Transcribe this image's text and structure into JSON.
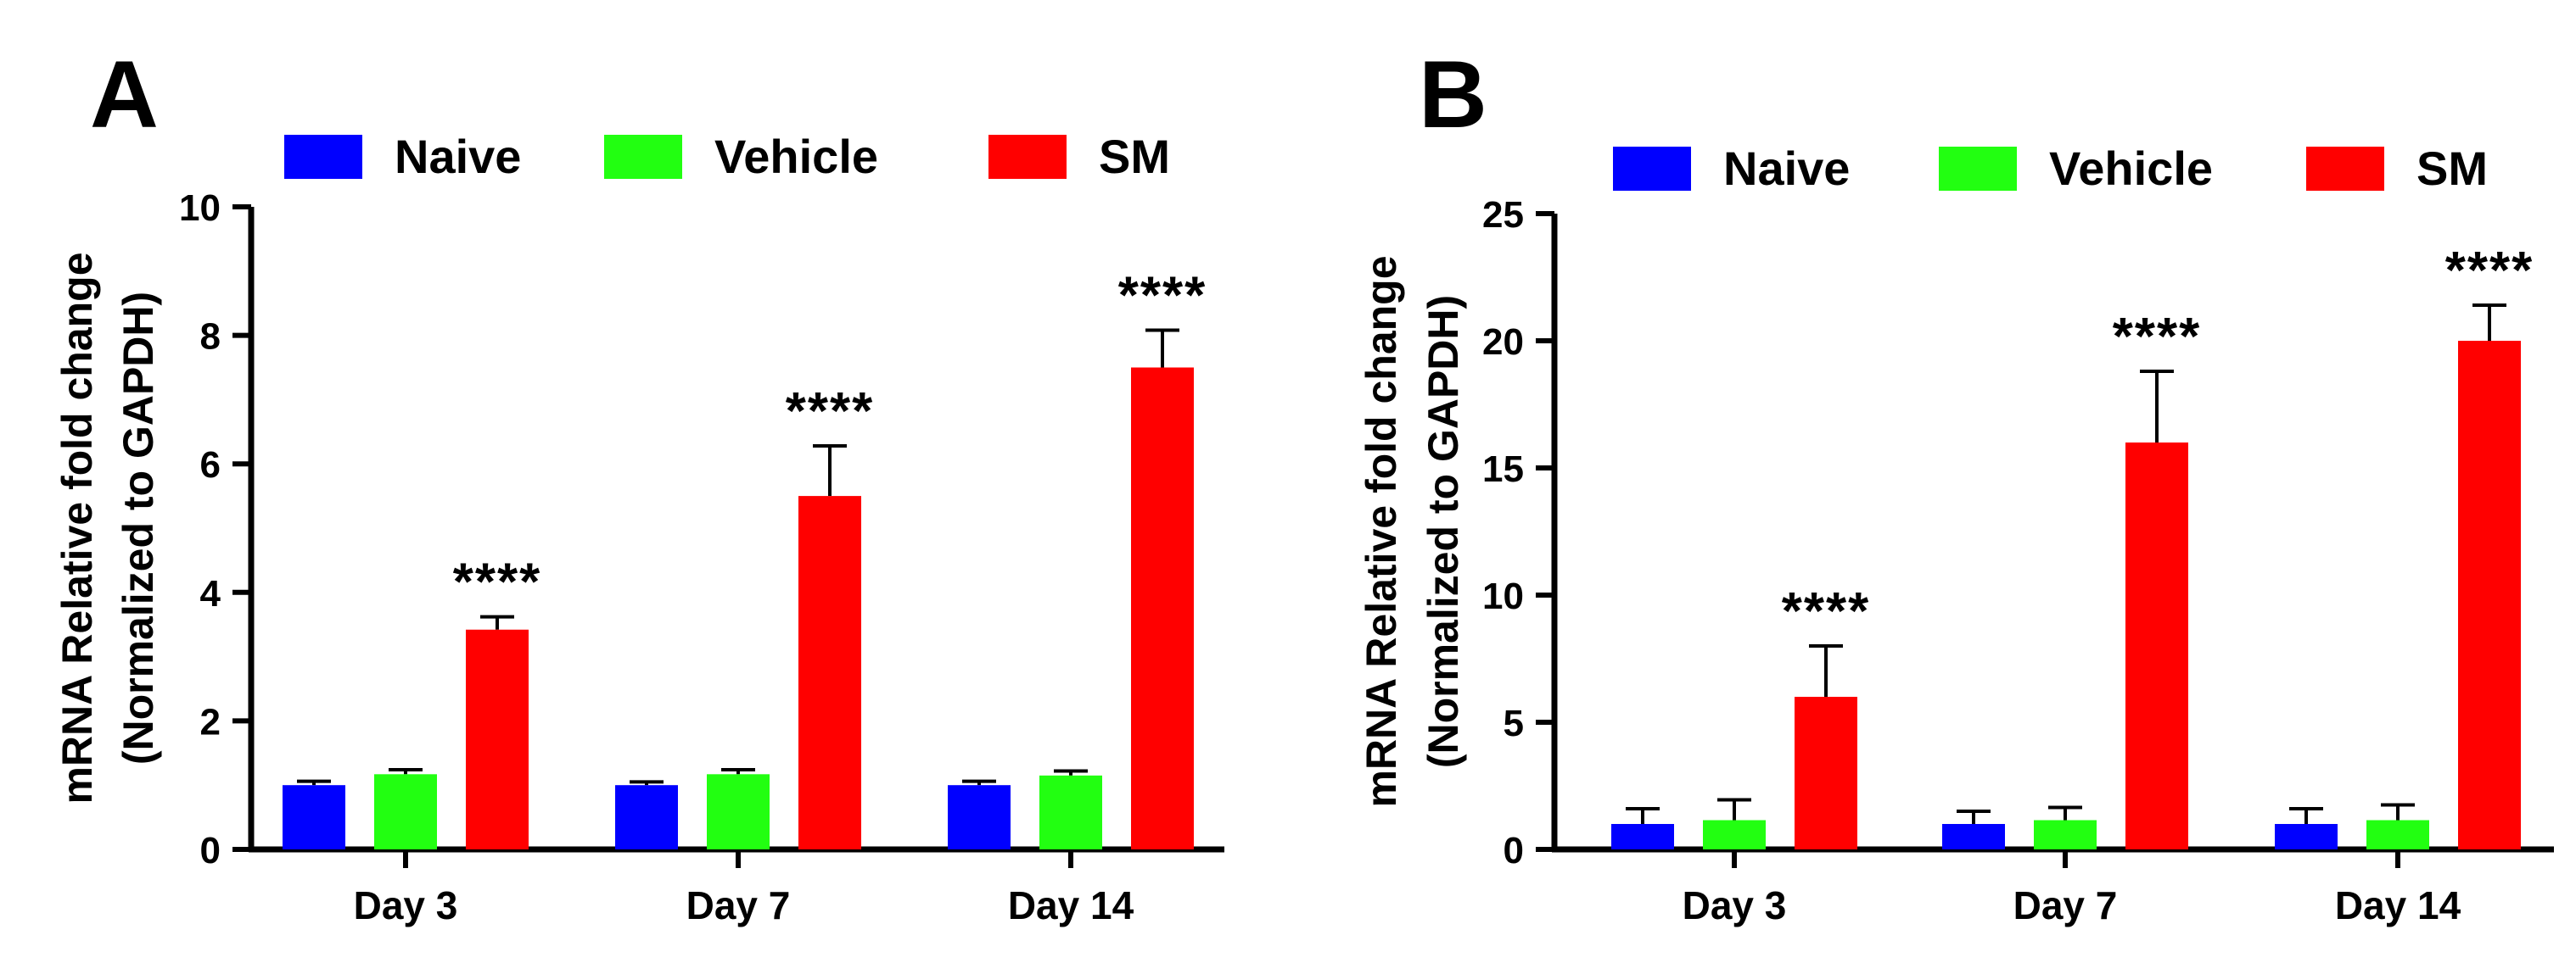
{
  "chart_data": [
    {
      "type": "bar",
      "panel_label": "A",
      "title": "",
      "categories": [
        "Day 3",
        "Day 7",
        "Day 14"
      ],
      "series": [
        {
          "name": "Naive",
          "color": "#0000ff",
          "values": [
            1.0,
            1.0,
            1.0
          ],
          "errors": [
            0.06,
            0.05,
            0.06
          ]
        },
        {
          "name": "Vehicle",
          "color": "#22ff11",
          "values": [
            1.17,
            1.17,
            1.15
          ],
          "errors": [
            0.07,
            0.07,
            0.07
          ]
        },
        {
          "name": "SM",
          "color": "#ff0000",
          "values": [
            3.42,
            5.5,
            7.5
          ],
          "errors": [
            0.2,
            0.78,
            0.58
          ]
        }
      ],
      "significance": [
        "****",
        "****",
        "****"
      ],
      "ylabel_line1": "mRNA Relative fold change",
      "ylabel_line2": "(Normalized to GAPDH)",
      "xlabel": "",
      "ylim": [
        0,
        10
      ],
      "yticks": [
        0,
        2,
        4,
        6,
        8,
        10
      ],
      "legend": "top",
      "grid": false
    },
    {
      "type": "bar",
      "panel_label": "B",
      "title": "",
      "categories": [
        "Day 3",
        "Day 7",
        "Day 14"
      ],
      "series": [
        {
          "name": "Naive",
          "color": "#0000ff",
          "values": [
            1.0,
            1.0,
            1.0
          ],
          "errors": [
            0.6,
            0.5,
            0.6
          ]
        },
        {
          "name": "Vehicle",
          "color": "#22ff11",
          "values": [
            1.15,
            1.15,
            1.15
          ],
          "errors": [
            0.8,
            0.5,
            0.6
          ]
        },
        {
          "name": "SM",
          "color": "#ff0000",
          "values": [
            6.0,
            16.0,
            20.0
          ],
          "errors": [
            2.0,
            2.8,
            1.4
          ]
        }
      ],
      "significance": [
        "****",
        "****",
        "****"
      ],
      "ylabel_line1": "mRNA Relative fold change",
      "ylabel_line2": "(Normalized to GAPDH)",
      "xlabel": "",
      "ylim": [
        0,
        25
      ],
      "yticks": [
        0,
        5,
        10,
        15,
        20,
        25
      ],
      "legend": "top",
      "grid": false
    }
  ]
}
